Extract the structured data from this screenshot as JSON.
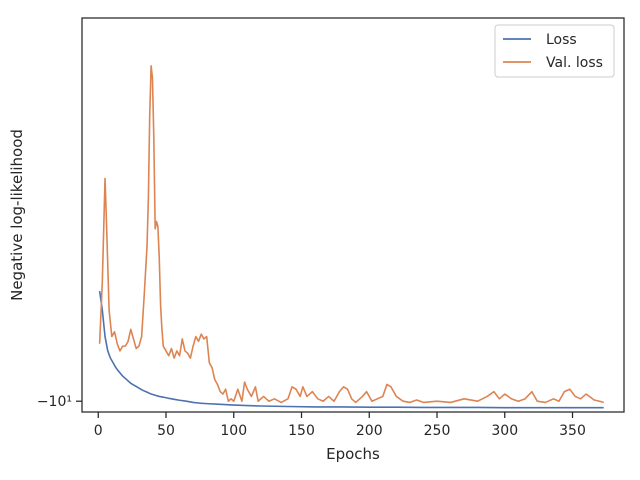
{
  "chart_data": {
    "type": "line",
    "xlabel": "Epochs",
    "ylabel": "Negative log-likelihood",
    "xlim": [
      -12,
      388
    ],
    "ylim": [
      -10.45,
      6.0
    ],
    "x_ticks": [
      0,
      50,
      100,
      150,
      200,
      250,
      300,
      350
    ],
    "y_ticks": [
      {
        "value": -10,
        "label": "−10¹"
      }
    ],
    "grid": false,
    "legend": {
      "location": "top-right",
      "entries": [
        "Loss",
        "Val. loss"
      ]
    },
    "colors": {
      "Loss": "#4c72b0",
      "Val. loss": "#dd8452"
    },
    "series": [
      {
        "name": "Loss",
        "color": "#4c72b0",
        "points": [
          [
            1,
            -5.4
          ],
          [
            3,
            -6.2
          ],
          [
            5,
            -7.3
          ],
          [
            7,
            -7.9
          ],
          [
            9,
            -8.2
          ],
          [
            11,
            -8.4
          ],
          [
            13,
            -8.6
          ],
          [
            15,
            -8.75
          ],
          [
            18,
            -8.95
          ],
          [
            21,
            -9.1
          ],
          [
            24,
            -9.25
          ],
          [
            27,
            -9.35
          ],
          [
            30,
            -9.45
          ],
          [
            33,
            -9.55
          ],
          [
            36,
            -9.62
          ],
          [
            39,
            -9.7
          ],
          [
            42,
            -9.75
          ],
          [
            45,
            -9.8
          ],
          [
            48,
            -9.83
          ],
          [
            52,
            -9.88
          ],
          [
            56,
            -9.92
          ],
          [
            60,
            -9.96
          ],
          [
            65,
            -10.0
          ],
          [
            70,
            -10.05
          ],
          [
            75,
            -10.08
          ],
          [
            80,
            -10.1
          ],
          [
            90,
            -10.13
          ],
          [
            100,
            -10.16
          ],
          [
            110,
            -10.18
          ],
          [
            120,
            -10.2
          ],
          [
            140,
            -10.22
          ],
          [
            160,
            -10.24
          ],
          [
            180,
            -10.24
          ],
          [
            200,
            -10.25
          ],
          [
            220,
            -10.25
          ],
          [
            240,
            -10.26
          ],
          [
            260,
            -10.26
          ],
          [
            280,
            -10.26
          ],
          [
            300,
            -10.27
          ],
          [
            320,
            -10.27
          ],
          [
            340,
            -10.27
          ],
          [
            360,
            -10.27
          ],
          [
            373,
            -10.27
          ]
        ]
      },
      {
        "name": "Val. loss",
        "color": "#dd8452",
        "points": [
          [
            1,
            -7.6
          ],
          [
            3,
            -5.0
          ],
          [
            5,
            -0.7
          ],
          [
            6,
            -2.4
          ],
          [
            8,
            -6.2
          ],
          [
            10,
            -7.3
          ],
          [
            12,
            -7.1
          ],
          [
            14,
            -7.6
          ],
          [
            16,
            -7.9
          ],
          [
            18,
            -7.7
          ],
          [
            20,
            -7.7
          ],
          [
            22,
            -7.5
          ],
          [
            24,
            -7.0
          ],
          [
            26,
            -7.4
          ],
          [
            28,
            -7.8
          ],
          [
            30,
            -7.7
          ],
          [
            32,
            -7.3
          ],
          [
            34,
            -5.5
          ],
          [
            35,
            -4.5
          ],
          [
            36,
            -3.5
          ],
          [
            37,
            -1.5
          ],
          [
            38,
            2.0
          ],
          [
            39,
            4.0
          ],
          [
            40,
            3.5
          ],
          [
            41,
            1.0
          ],
          [
            42,
            -2.8
          ],
          [
            43,
            -2.5
          ],
          [
            44,
            -2.7
          ],
          [
            45,
            -4.0
          ],
          [
            46,
            -6.0
          ],
          [
            47,
            -7.0
          ],
          [
            48,
            -7.7
          ],
          [
            50,
            -7.9
          ],
          [
            52,
            -8.1
          ],
          [
            54,
            -7.8
          ],
          [
            56,
            -8.2
          ],
          [
            58,
            -7.9
          ],
          [
            60,
            -8.1
          ],
          [
            62,
            -7.4
          ],
          [
            64,
            -7.9
          ],
          [
            66,
            -8.0
          ],
          [
            68,
            -8.2
          ],
          [
            70,
            -7.7
          ],
          [
            72,
            -7.3
          ],
          [
            74,
            -7.5
          ],
          [
            76,
            -7.2
          ],
          [
            78,
            -7.4
          ],
          [
            80,
            -7.3
          ],
          [
            82,
            -8.4
          ],
          [
            84,
            -8.6
          ],
          [
            86,
            -9.1
          ],
          [
            88,
            -9.3
          ],
          [
            90,
            -9.6
          ],
          [
            92,
            -9.7
          ],
          [
            94,
            -9.5
          ],
          [
            96,
            -10.0
          ],
          [
            98,
            -9.9
          ],
          [
            100,
            -10.0
          ],
          [
            103,
            -9.5
          ],
          [
            106,
            -10.0
          ],
          [
            108,
            -9.2
          ],
          [
            110,
            -9.5
          ],
          [
            113,
            -9.8
          ],
          [
            116,
            -9.4
          ],
          [
            118,
            -10.0
          ],
          [
            122,
            -9.8
          ],
          [
            126,
            -10.0
          ],
          [
            130,
            -9.9
          ],
          [
            135,
            -10.05
          ],
          [
            140,
            -9.9
          ],
          [
            143,
            -9.4
          ],
          [
            146,
            -9.5
          ],
          [
            149,
            -9.8
          ],
          [
            151,
            -9.4
          ],
          [
            154,
            -9.8
          ],
          [
            158,
            -9.6
          ],
          [
            162,
            -9.9
          ],
          [
            166,
            -10.0
          ],
          [
            170,
            -9.8
          ],
          [
            174,
            -10.0
          ],
          [
            178,
            -9.6
          ],
          [
            181,
            -9.4
          ],
          [
            184,
            -9.5
          ],
          [
            187,
            -9.9
          ],
          [
            190,
            -10.05
          ],
          [
            195,
            -9.8
          ],
          [
            198,
            -9.6
          ],
          [
            202,
            -10.0
          ],
          [
            206,
            -9.9
          ],
          [
            210,
            -9.8
          ],
          [
            213,
            -9.3
          ],
          [
            216,
            -9.4
          ],
          [
            220,
            -9.8
          ],
          [
            225,
            -10.0
          ],
          [
            230,
            -10.05
          ],
          [
            235,
            -9.95
          ],
          [
            240,
            -10.05
          ],
          [
            250,
            -10.0
          ],
          [
            260,
            -10.05
          ],
          [
            270,
            -9.9
          ],
          [
            280,
            -10.0
          ],
          [
            287,
            -9.8
          ],
          [
            292,
            -9.6
          ],
          [
            296,
            -9.9
          ],
          [
            300,
            -9.7
          ],
          [
            305,
            -9.9
          ],
          [
            310,
            -10.0
          ],
          [
            315,
            -9.9
          ],
          [
            320,
            -9.6
          ],
          [
            324,
            -10.0
          ],
          [
            330,
            -10.05
          ],
          [
            336,
            -9.9
          ],
          [
            340,
            -10.0
          ],
          [
            344,
            -9.6
          ],
          [
            348,
            -9.5
          ],
          [
            352,
            -9.8
          ],
          [
            356,
            -9.9
          ],
          [
            360,
            -9.7
          ],
          [
            366,
            -9.95
          ],
          [
            370,
            -10.0
          ],
          [
            373,
            -10.05
          ]
        ]
      }
    ]
  }
}
